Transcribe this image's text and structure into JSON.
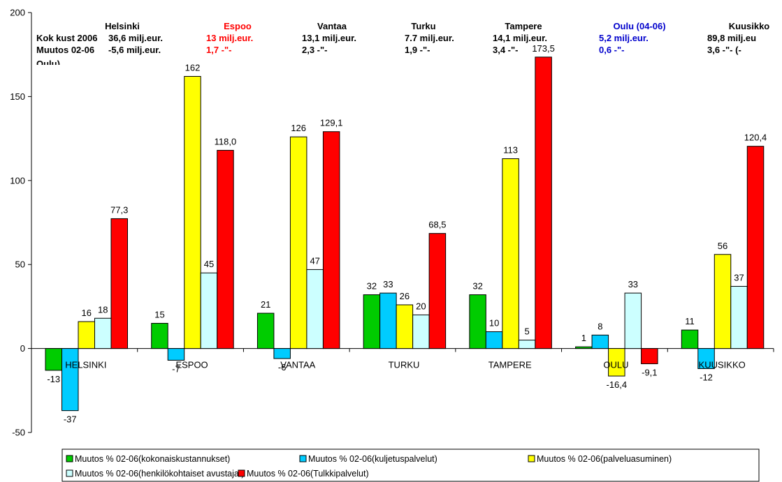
{
  "chart_data": {
    "type": "bar",
    "categories": [
      "HELSINKI",
      "ESPOO",
      "VANTAA",
      "TURKU",
      "TAMPERE",
      "OULU",
      "KUUSIKKO"
    ],
    "ylim": [
      -50,
      200
    ],
    "yticks": [
      -50,
      0,
      50,
      100,
      150,
      200
    ],
    "grid": false,
    "legend_position": "bottom",
    "series": [
      {
        "name": "Muutos % 02-06(kokonaiskustannukset)",
        "color": "#00cc00",
        "values": [
          -13,
          15,
          21,
          32,
          32,
          1,
          11
        ],
        "labels": [
          "-13",
          "15",
          "21",
          "32",
          "32",
          "1",
          "11"
        ]
      },
      {
        "name": "Muutos % 02-06(kuljetuspalvelut)",
        "color": "#00ccff",
        "values": [
          -37,
          -7,
          -6,
          33,
          10,
          8,
          -12
        ],
        "labels": [
          "-37",
          "-7",
          "-6",
          "33",
          "10",
          "8",
          "-12"
        ]
      },
      {
        "name": "Muutos % 02-06(palveluasuminen)",
        "color": "#ffff00",
        "values": [
          16,
          162,
          126,
          26,
          113,
          -16.4,
          56
        ],
        "labels": [
          "16",
          "162",
          "126",
          "26",
          "113",
          "-16,4",
          "56"
        ]
      },
      {
        "name": "Muutos % 02-06(henkilökohtaiset avustajat)",
        "color": "#ccffff",
        "values": [
          18,
          45,
          47,
          20,
          5,
          33,
          37
        ],
        "labels": [
          "18",
          "45",
          "47",
          "20",
          "5",
          "33",
          "37"
        ]
      },
      {
        "name": "Muutos % 02-06(Tulkkipalvelut)",
        "color": "#ff0000",
        "values": [
          77.3,
          118.0,
          129.1,
          68.5,
          173.5,
          -9.1,
          120.4
        ],
        "labels": [
          "77,3",
          "118,0",
          "129,1",
          "68,5",
          "173,5",
          "-9,1",
          "120,4"
        ]
      }
    ],
    "annotations": {
      "row_labels": [
        "Kok kust 2006",
        "Muutos 02-06"
      ],
      "cities": [
        {
          "name": "Helsinki",
          "cost": "36,6 milj.eur.",
          "change": "-5,6 milj.eur.",
          "color": "#000000"
        },
        {
          "name": "Espoo",
          "cost": "13  milj.eur.",
          "change": "1,7   -\"-",
          "color": "#ff0000"
        },
        {
          "name": "Vantaa",
          "cost": "13,1 milj.eur.",
          "change": "2,3   -\"-",
          "color": "#000000"
        },
        {
          "name": "Turku",
          "cost": "7.7 milj.eur.",
          "change": "1,9 -\"-",
          "color": "#000000"
        },
        {
          "name": "Tampere",
          "cost": "14,1 milj.eur.",
          "change": "3,4 -\"-",
          "color": "#000000"
        },
        {
          "name": "Oulu (04-06)",
          "cost": "5,2 milj.eur.",
          "change": "0,6 -\"-",
          "color": "#0000cc"
        },
        {
          "name": "Kuusikko",
          "cost": "89,8 milj.eu",
          "change": "3,6 -\"- (-",
          "color": "#000000"
        }
      ],
      "overflow_text": "Oulu)"
    }
  }
}
